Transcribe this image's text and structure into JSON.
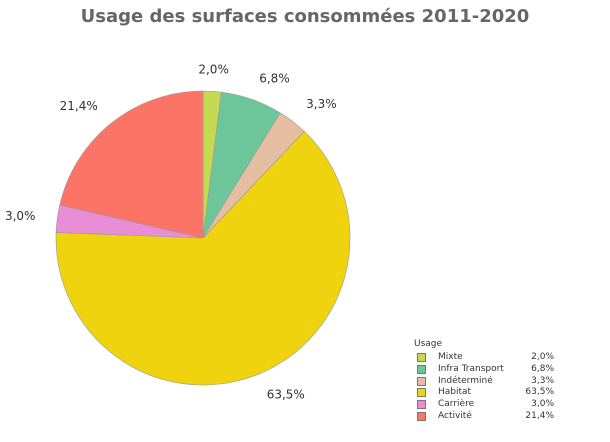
{
  "chart_data": {
    "type": "pie",
    "title": "Usage des surfaces consommées 2011-2020",
    "legend_title": "Usage",
    "legend_position": "bottom-right",
    "slices": [
      {
        "name": "Mixte",
        "value": 2.0,
        "label": "2,0%",
        "color": "#c4d951"
      },
      {
        "name": "Infra Transport",
        "value": 6.8,
        "label": "6,8%",
        "color": "#6cc69a"
      },
      {
        "name": "Indéterminé",
        "value": 3.3,
        "label": "3,3%",
        "color": "#e5bea1"
      },
      {
        "name": "Habitat",
        "value": 63.5,
        "label": "63,5%",
        "color": "#efd30f"
      },
      {
        "name": "Carrière",
        "value": 3.0,
        "label": "3,0%",
        "color": "#e88dd6"
      },
      {
        "name": "Activité",
        "value": 21.4,
        "label": "21,4%",
        "color": "#fc7466"
      }
    ]
  }
}
